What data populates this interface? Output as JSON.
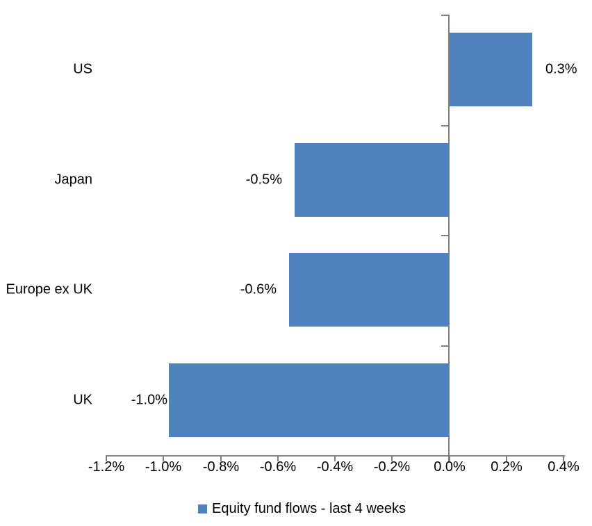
{
  "chart_data": {
    "type": "bar",
    "orientation": "horizontal",
    "title": "",
    "categories": [
      "US",
      "Japan",
      "Europe ex UK",
      "UK"
    ],
    "values": [
      0.3,
      -0.5,
      -0.6,
      -1.0
    ],
    "value_labels": [
      "0.3%",
      "-0.5%",
      "-0.6%",
      "-1.0%"
    ],
    "bar_plot_values": [
      0.29,
      -0.54,
      -0.56,
      -0.98
    ],
    "xlim": [
      -1.2,
      0.4
    ],
    "x_ticks": [
      -1.2,
      -1.0,
      -0.8,
      -0.6,
      -0.4,
      -0.2,
      0.0,
      0.2,
      0.4
    ],
    "x_tick_labels": [
      "-1.2%",
      "-1.0%",
      "-0.8%",
      "-0.6%",
      "-0.4%",
      "-0.2%",
      "0.0%",
      "0.2%",
      "0.4%"
    ],
    "grid": false,
    "legend": {
      "label": "Equity fund flows - last 4 weeks",
      "position": "bottom"
    },
    "colors": {
      "bar": "#4F81BD",
      "axis": "#808080",
      "text": "#000000",
      "background": "#FFFFFF"
    }
  }
}
